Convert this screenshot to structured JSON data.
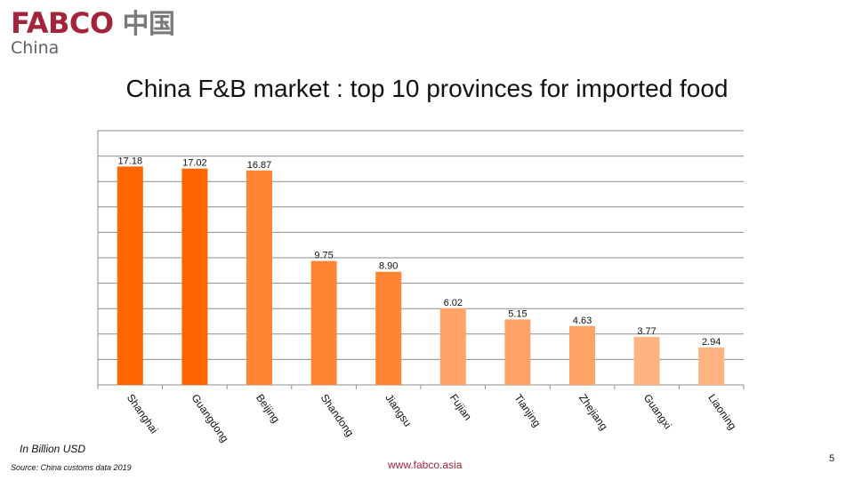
{
  "logo": {
    "brand": "FABCO",
    "chinese": "中国",
    "sub": "China",
    "color": "#a3243b"
  },
  "title": "China F&B market : top 10 provinces for imported food",
  "chart_data": {
    "type": "bar",
    "title": "China F&B market : top 10 provinces for imported food",
    "categories": [
      "Shanghai",
      "Guangdong",
      "Beijing",
      "Shandong",
      "Jiangsu",
      "Fujian",
      "Tianjing",
      "Zhejiang",
      "Guangxi",
      "Liaoning"
    ],
    "values": [
      17.18,
      17.02,
      16.87,
      9.75,
      8.9,
      6.02,
      5.15,
      4.63,
      3.77,
      2.94
    ],
    "value_labels": [
      "17.18",
      "17.02",
      "16.87",
      "9.75",
      "8.90",
      "6.02",
      "5.15",
      "4.63",
      "3.77",
      "2.94"
    ],
    "bar_colors": [
      "#ff6600",
      "#ff6600",
      "#ff8533",
      "#ff8533",
      "#ff8533",
      "#ffa366",
      "#ffa366",
      "#ffa366",
      "#ffb380",
      "#ffb380"
    ],
    "ylim": [
      0,
      20
    ],
    "gridlines": true,
    "xlabel": "",
    "ylabel": "",
    "unit_note": "In Billion USD"
  },
  "notes": {
    "unit": "In Billion USD",
    "source": "Source: China customs data 2019"
  },
  "footer": {
    "url": "www.fabco.asia",
    "page_number": "5"
  }
}
